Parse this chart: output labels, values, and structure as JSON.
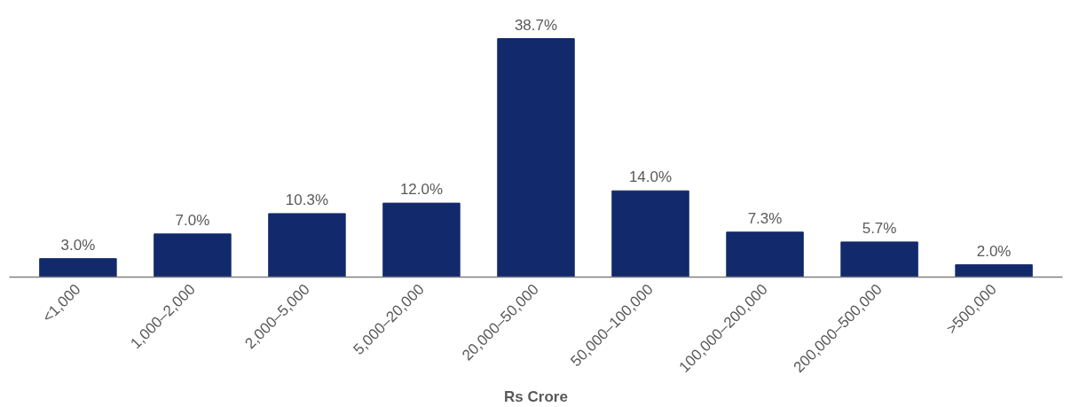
{
  "chart_data": {
    "type": "bar",
    "xlabel": "Rs Crore",
    "categories": [
      "<1,000",
      "1,000–2,000",
      "2,000–5,000",
      "5,000–20,000",
      "20,000–50,000",
      "50,000–100,000",
      "100,000–200,000",
      "200,000–500,000",
      ">500,000"
    ],
    "values": [
      3.0,
      7.0,
      10.3,
      12.0,
      38.7,
      14.0,
      7.3,
      5.7,
      2.0
    ],
    "value_labels": [
      "3.0%",
      "7.0%",
      "10.3%",
      "12.0%",
      "38.7%",
      "14.0%",
      "7.3%",
      "5.7%",
      "2.0%"
    ],
    "color": "#122a6c",
    "grid": false
  }
}
